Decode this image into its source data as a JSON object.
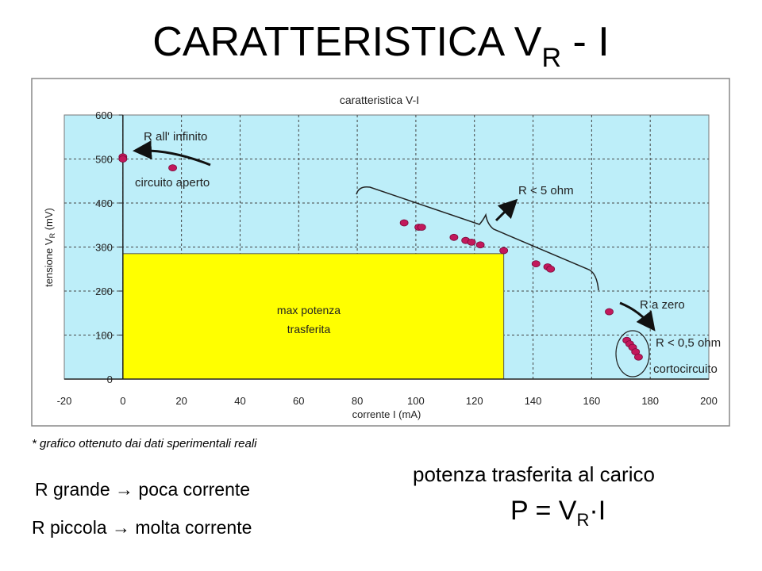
{
  "slide": {
    "title_main": "CARATTERISTICA V",
    "title_sub": "R",
    "title_tail": " - I"
  },
  "chart_data": {
    "type": "scatter",
    "title": "caratteristica V-I",
    "xlabel": "corrente I (mA)",
    "ylabel_main": "tensione V",
    "ylabel_sub": "R",
    "ylabel_tail": " (mV)",
    "xlim": [
      -20,
      200
    ],
    "ylim": [
      0,
      600
    ],
    "x_ticks": [
      -20,
      0,
      20,
      40,
      60,
      80,
      100,
      120,
      140,
      160,
      180,
      200
    ],
    "y_ticks": [
      0,
      100,
      200,
      300,
      400,
      500,
      600
    ],
    "grid": true,
    "plot_background": "#bdeef9",
    "point_color": "#c2185b",
    "points": [
      {
        "x": 0,
        "y": 505
      },
      {
        "x": 0,
        "y": 500
      },
      {
        "x": 17,
        "y": 480
      },
      {
        "x": 96,
        "y": 355
      },
      {
        "x": 101,
        "y": 345
      },
      {
        "x": 102,
        "y": 345
      },
      {
        "x": 113,
        "y": 322
      },
      {
        "x": 117,
        "y": 315
      },
      {
        "x": 119,
        "y": 311
      },
      {
        "x": 122,
        "y": 305
      },
      {
        "x": 130,
        "y": 292
      },
      {
        "x": 141,
        "y": 262
      },
      {
        "x": 145,
        "y": 255
      },
      {
        "x": 146,
        "y": 250
      },
      {
        "x": 166,
        "y": 153
      },
      {
        "x": 172,
        "y": 88
      },
      {
        "x": 173,
        "y": 80
      },
      {
        "x": 174,
        "y": 72
      },
      {
        "x": 175,
        "y": 62
      },
      {
        "x": 176,
        "y": 50
      }
    ],
    "max_power_region": {
      "x0": 0,
      "x1": 130,
      "y0": 0,
      "y1": 285,
      "color": "#ffff00",
      "label_line1": "max potenza",
      "label_line2": "trasferita"
    },
    "annotations": {
      "r_infinite": "R  all' infinito",
      "open_circuit": "circuito aperto",
      "r_less_5": "R < 5 ohm",
      "r_zero": "R  a zero",
      "r_less_05": "R < 0,5 ohm",
      "short_circuit": "cortocircuito"
    }
  },
  "note": "* grafico ottenuto dai dati sperimentali reali",
  "bottom": {
    "line1": "R grande → poca corrente",
    "line2": "R piccola → molta corrente",
    "power_title": "potenza trasferita al carico",
    "formula_main": "P = V",
    "formula_sub": "R",
    "formula_tail": "·I"
  }
}
